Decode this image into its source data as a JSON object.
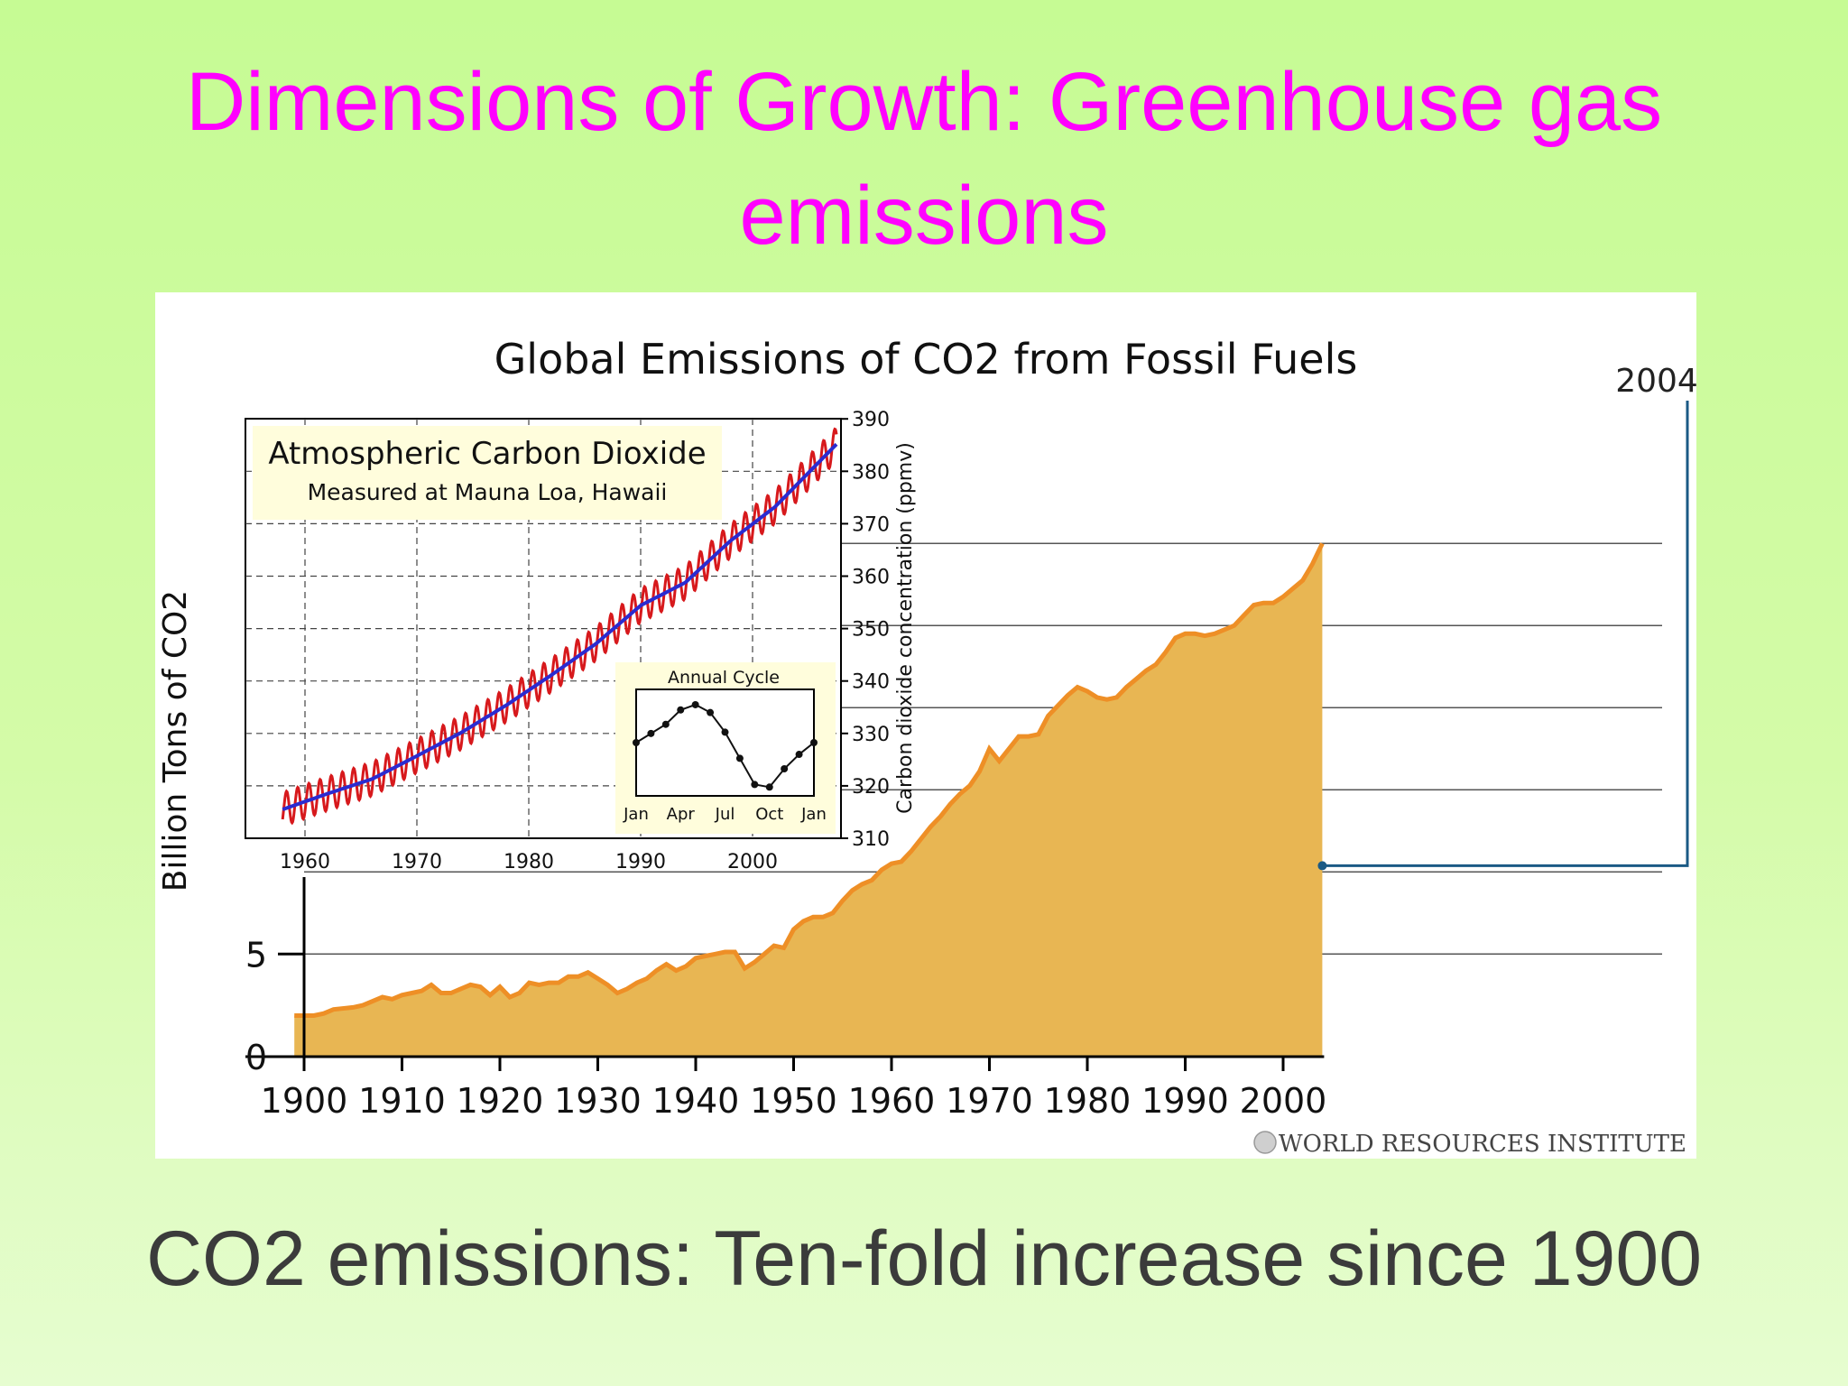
{
  "slide": {
    "title": "Dimensions of Growth: Greenhouse gas emissions",
    "caption": "CO2 emissions: Ten-fold increase since 1900"
  },
  "colors": {
    "title": "#ff00ff",
    "caption": "#3b3b3b",
    "area_fill": "#e8b653",
    "area_line": "#ee8f26",
    "mauna_loa_seasonal": "#d7191c",
    "mauna_loa_trend": "#2b2bd0",
    "inset_bg": "#fffddc",
    "callout": "#1b5a85"
  },
  "chart_data": [
    {
      "type": "area",
      "title": "Global Emissions of CO2 from Fossil Fuels",
      "ylabel": "Billion Tons of CO2",
      "xlabel": "",
      "xlim": [
        1900,
        2004
      ],
      "ylim": [
        0,
        30
      ],
      "xticks": [
        "1900",
        "1910",
        "1920",
        "1930",
        "1940",
        "1950",
        "1960",
        "1970",
        "1980",
        "1990",
        "2000"
      ],
      "yticks": [
        "0",
        "5"
      ],
      "annotation": "2004",
      "source": "WORLD RESOURCES INSTITUTE",
      "x": [
        1899,
        1901,
        1902,
        1903,
        1905,
        1906,
        1907,
        1908,
        1909,
        1910,
        1911,
        1912,
        1913,
        1914,
        1915,
        1916,
        1917,
        1918,
        1919,
        1920,
        1921,
        1922,
        1923,
        1924,
        1925,
        1926,
        1927,
        1928,
        1929,
        1930,
        1931,
        1932,
        1933,
        1934,
        1935,
        1936,
        1937,
        1938,
        1939,
        1940,
        1941,
        1942,
        1943,
        1944,
        1945,
        1946,
        1947,
        1948,
        1949,
        1950,
        1951,
        1952,
        1953,
        1954,
        1955,
        1956,
        1957,
        1958,
        1959,
        1960,
        1961,
        1962,
        1963,
        1964,
        1965,
        1966,
        1967,
        1968,
        1969,
        1970,
        1971,
        1972,
        1973,
        1974,
        1975,
        1976,
        1977,
        1978,
        1979,
        1980,
        1981,
        1982,
        1983,
        1984,
        1985,
        1986,
        1987,
        1988,
        1989,
        1990,
        1991,
        1992,
        1993,
        1994,
        1995,
        1996,
        1997,
        1998,
        1999,
        2000,
        2001,
        2002,
        2003,
        2004
      ],
      "values": [
        2.0,
        2.0,
        2.1,
        2.3,
        2.4,
        2.5,
        2.7,
        2.9,
        2.8,
        3.0,
        3.1,
        3.2,
        3.5,
        3.1,
        3.1,
        3.3,
        3.5,
        3.4,
        3.0,
        3.4,
        2.9,
        3.1,
        3.6,
        3.5,
        3.6,
        3.6,
        3.9,
        3.9,
        4.1,
        3.8,
        3.5,
        3.1,
        3.3,
        3.6,
        3.8,
        4.2,
        4.5,
        4.2,
        4.4,
        4.8,
        4.9,
        5.0,
        5.1,
        5.1,
        4.3,
        4.6,
        5.0,
        5.4,
        5.3,
        6.2,
        6.6,
        6.8,
        6.8,
        7.0,
        7.6,
        8.1,
        8.4,
        8.6,
        9.1,
        9.4,
        9.5,
        10.0,
        10.6,
        11.2,
        11.7,
        12.3,
        12.8,
        13.2,
        13.9,
        15.0,
        14.4,
        15.0,
        15.6,
        15.6,
        15.7,
        16.6,
        17.1,
        17.6,
        18.0,
        17.8,
        17.5,
        17.4,
        17.5,
        18.0,
        18.4,
        18.8,
        19.1,
        19.7,
        20.4,
        20.6,
        20.6,
        20.5,
        20.6,
        20.8,
        21.0,
        21.5,
        22.0,
        22.1,
        22.1,
        22.4,
        22.8,
        23.2,
        24.0,
        25.0
      ]
    },
    {
      "type": "line",
      "title": "Atmospheric Carbon Dioxide",
      "subtitle": "Measured at Mauna Loa, Hawaii",
      "ylabel": "Carbon dioxide concentration (ppmv)",
      "xlim": [
        1957,
        2008
      ],
      "ylim": [
        310,
        390
      ],
      "xticks": [
        "1960",
        "1970",
        "1980",
        "1990",
        "2000"
      ],
      "yticks": [
        "310",
        "320",
        "330",
        "340",
        "350",
        "360",
        "370",
        "380",
        "390"
      ],
      "x": [
        1958,
        1962,
        1966,
        1970,
        1974,
        1978,
        1982,
        1986,
        1990,
        1994,
        1998,
        2002,
        2006
      ],
      "values": [
        315.5,
        318.5,
        321.3,
        325.7,
        330.2,
        335.4,
        341.1,
        347.1,
        354.4,
        358.8,
        366.7,
        373.2,
        381.9
      ],
      "seasonal_amplitude_ppmv": 3.2
    },
    {
      "type": "line",
      "title": "Annual Cycle",
      "categories": [
        "Jan",
        "Feb",
        "Mar",
        "Apr",
        "May",
        "Jun",
        "Jul",
        "Aug",
        "Sep",
        "Oct",
        "Nov",
        "Dec",
        "Jan"
      ],
      "xticks": [
        "Jan",
        "Apr",
        "Jul",
        "Oct",
        "Jan"
      ],
      "ylim": [
        -4,
        4
      ],
      "values": [
        0.0,
        0.7,
        1.4,
        2.5,
        2.9,
        2.3,
        0.8,
        -1.2,
        -3.2,
        -3.4,
        -2.0,
        -0.9,
        0.0
      ]
    }
  ]
}
